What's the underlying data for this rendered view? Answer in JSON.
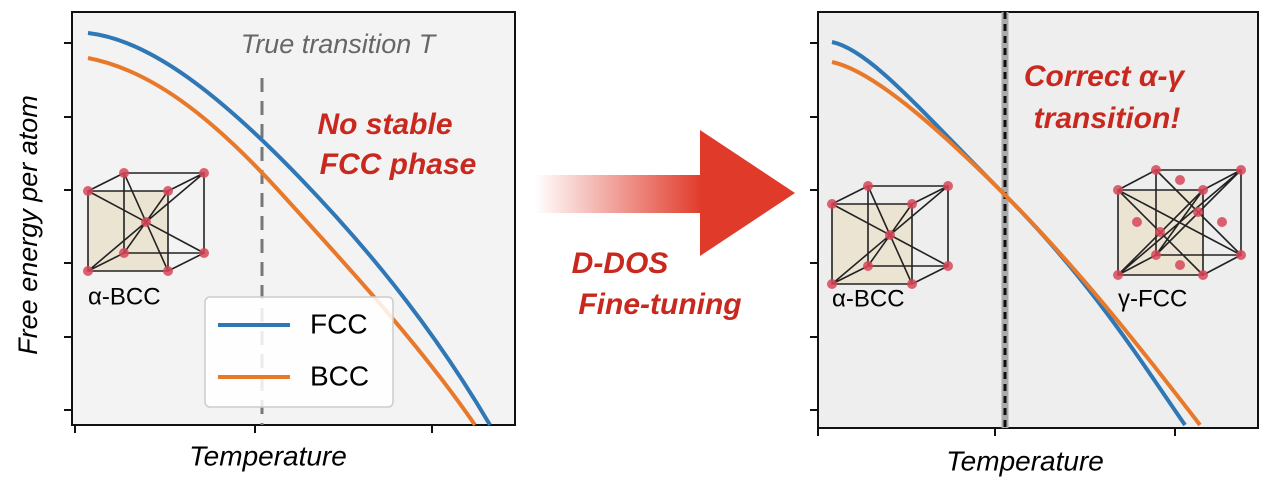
{
  "left_panel": {
    "y_label": "Free energy per atom",
    "x_label": "Temperature",
    "annotation": "True transition T",
    "note": [
      "No stable",
      "FCC phase"
    ],
    "phase_label": "α-BCC",
    "legend": [
      "FCC",
      "BCC"
    ]
  },
  "arrow": {
    "label": [
      "D-DOS",
      "Fine-tuning"
    ]
  },
  "right_panel": {
    "x_label": "Temperature",
    "note": [
      "Correct α-γ",
      "transition!"
    ],
    "phase_labels": [
      "α-BCC",
      "γ-FCC"
    ]
  }
}
